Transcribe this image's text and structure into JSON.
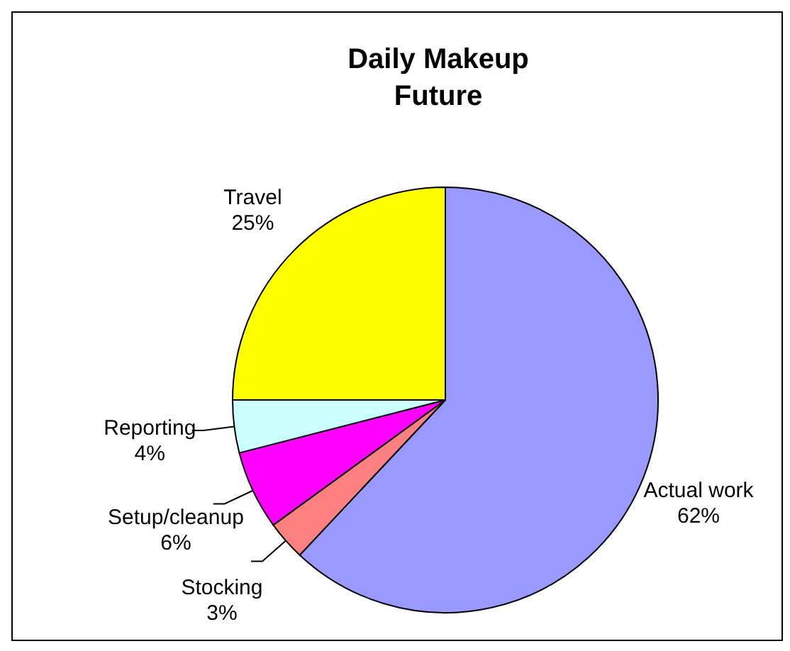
{
  "chart_data": {
    "type": "pie",
    "title": "Daily Makeup\nFuture",
    "categories": [
      "Actual work",
      "Stocking",
      "Setup/cleanup",
      "Reporting",
      "Travel"
    ],
    "values": [
      62,
      3,
      6,
      4,
      25
    ],
    "value_labels": [
      "62%",
      "3%",
      "6%",
      "4%",
      "25%"
    ],
    "colors": [
      "#9999ff",
      "#ff8080",
      "#ff00ff",
      "#ccffff",
      "#ffff00"
    ]
  }
}
